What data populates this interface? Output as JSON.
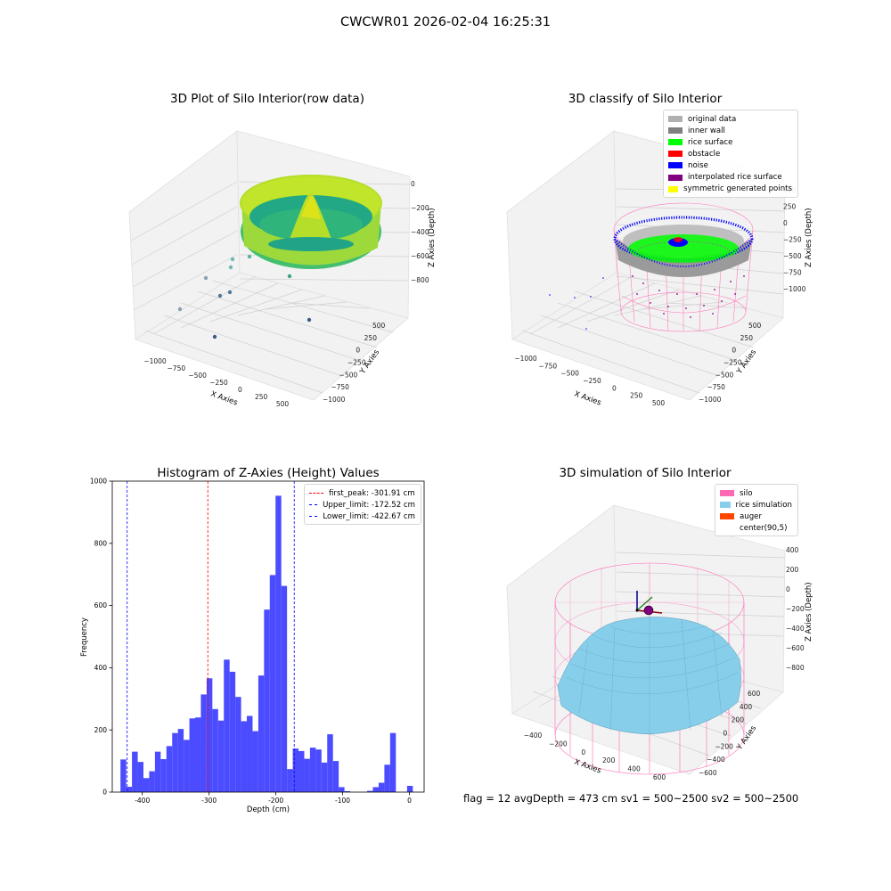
{
  "suptitle": "CWCWR01 2026-02-04 16:25:31",
  "panels": {
    "raw": {
      "title": "3D Plot of Silo Interior(row data)",
      "xlabel": "X Axies",
      "ylabel": "Y Axies",
      "zlabel": "Z Axies (Depth)",
      "xticks": [
        "−1000",
        "−750",
        "−500",
        "−250",
        "0",
        "250",
        "500"
      ],
      "yticks": [
        "500",
        "250",
        "0",
        "−250",
        "−500",
        "−750",
        "−1000"
      ],
      "zticks": [
        "0",
        "−200",
        "−400",
        "−600",
        "−800"
      ]
    },
    "classify": {
      "title": "3D classify of Silo Interior",
      "xlabel": "X Axies",
      "ylabel": "Y Axies",
      "zlabel": "Z Axies (Depth)",
      "xticks": [
        "−1000",
        "−750",
        "−500",
        "−250",
        "0",
        "250",
        "500"
      ],
      "yticks": [
        "500",
        "250",
        "0",
        "−250",
        "−500",
        "−750",
        "−1000"
      ],
      "zticks": [
        "500",
        "250",
        "0",
        "−250",
        "−500",
        "−750",
        "−1000"
      ],
      "legend": [
        {
          "label": "original data",
          "color": "#b0b0b0"
        },
        {
          "label": "inner wall",
          "color": "#808080"
        },
        {
          "label": "rice surface",
          "color": "#00ff00"
        },
        {
          "label": "obstacle",
          "color": "#ff0000"
        },
        {
          "label": "noise",
          "color": "#0000ff"
        },
        {
          "label": "interpolated rice surface",
          "color": "#800080"
        },
        {
          "label": "symmetric generated points",
          "color": "#ffff00"
        }
      ]
    },
    "simulation": {
      "title": "3D simulation of Silo Interior",
      "xlabel": "X Axies",
      "ylabel": "Y Axies",
      "zlabel": "Z Axies (Depth)",
      "xticks": [
        "−400",
        "−200",
        "0",
        "200",
        "400",
        "600"
      ],
      "yticks": [
        "600",
        "400",
        "200",
        "0",
        "−200",
        "−400",
        "−600"
      ],
      "zticks": [
        "400",
        "200",
        "0",
        "−200",
        "−400",
        "−600",
        "−800"
      ],
      "legend": [
        {
          "label": "silo",
          "color": "#ff69b4"
        },
        {
          "label": "rice simulation",
          "color": "#87ceeb"
        },
        {
          "label": "auger",
          "color": "#ff4500"
        },
        {
          "label": "center(90,5)",
          "color": "#ffffff"
        }
      ]
    }
  },
  "chart_data": {
    "type": "bar",
    "title": "Histogram of Z-Axies (Height) Values",
    "xlabel": "Depth (cm)",
    "ylabel": "Frequency",
    "xlim": [
      -445,
      22
    ],
    "ylim": [
      0,
      1000
    ],
    "xticks": [
      -400,
      -300,
      -200,
      -100,
      0
    ],
    "yticks": [
      0,
      200,
      400,
      600,
      800,
      1000
    ],
    "bar_color": "#4b4bff",
    "bins": [
      {
        "x0": -432.7,
        "x1": -424.1,
        "count": 105
      },
      {
        "x0": -424.1,
        "x1": -415.5,
        "count": 17
      },
      {
        "x0": -415.5,
        "x1": -406.9,
        "count": 130
      },
      {
        "x0": -406.9,
        "x1": -398.3,
        "count": 97
      },
      {
        "x0": -398.3,
        "x1": -389.7,
        "count": 45
      },
      {
        "x0": -389.7,
        "x1": -381.1,
        "count": 67
      },
      {
        "x0": -381.1,
        "x1": -372.5,
        "count": 130
      },
      {
        "x0": -372.5,
        "x1": -363.9,
        "count": 106
      },
      {
        "x0": -363.9,
        "x1": -355.3,
        "count": 148
      },
      {
        "x0": -355.3,
        "x1": -346.7,
        "count": 190
      },
      {
        "x0": -346.7,
        "x1": -338.1,
        "count": 203
      },
      {
        "x0": -338.1,
        "x1": -329.5,
        "count": 168
      },
      {
        "x0": -329.5,
        "x1": -320.9,
        "count": 237
      },
      {
        "x0": -320.9,
        "x1": -312.3,
        "count": 240
      },
      {
        "x0": -312.3,
        "x1": -303.7,
        "count": 314
      },
      {
        "x0": -303.7,
        "x1": -295.1,
        "count": 366
      },
      {
        "x0": -295.1,
        "x1": -286.5,
        "count": 267
      },
      {
        "x0": -286.5,
        "x1": -277.9,
        "count": 230
      },
      {
        "x0": -277.9,
        "x1": -269.3,
        "count": 426
      },
      {
        "x0": -269.3,
        "x1": -260.7,
        "count": 387
      },
      {
        "x0": -260.7,
        "x1": -252.1,
        "count": 306
      },
      {
        "x0": -252.1,
        "x1": -243.5,
        "count": 228
      },
      {
        "x0": -243.5,
        "x1": -234.9,
        "count": 245
      },
      {
        "x0": -234.9,
        "x1": -226.3,
        "count": 196
      },
      {
        "x0": -226.3,
        "x1": -217.7,
        "count": 375
      },
      {
        "x0": -217.7,
        "x1": -209.1,
        "count": 587
      },
      {
        "x0": -209.1,
        "x1": -200.5,
        "count": 698
      },
      {
        "x0": -200.5,
        "x1": -191.9,
        "count": 953
      },
      {
        "x0": -191.9,
        "x1": -183.3,
        "count": 663
      },
      {
        "x0": -183.3,
        "x1": -174.7,
        "count": 74
      },
      {
        "x0": -174.7,
        "x1": -166.1,
        "count": 140
      },
      {
        "x0": -166.1,
        "x1": -157.5,
        "count": 132
      },
      {
        "x0": -157.5,
        "x1": -148.9,
        "count": 107
      },
      {
        "x0": -148.9,
        "x1": -140.3,
        "count": 143
      },
      {
        "x0": -140.3,
        "x1": -131.7,
        "count": 137
      },
      {
        "x0": -131.7,
        "x1": -123.1,
        "count": 95
      },
      {
        "x0": -123.1,
        "x1": -114.5,
        "count": 186
      },
      {
        "x0": -114.5,
        "x1": -105.9,
        "count": 100
      },
      {
        "x0": -105.9,
        "x1": -97.3,
        "count": 16
      },
      {
        "x0": -97.3,
        "x1": -88.7,
        "count": 3
      },
      {
        "x0": -63.3,
        "x1": -54.7,
        "count": 4
      },
      {
        "x0": -54.7,
        "x1": -46.1,
        "count": 16
      },
      {
        "x0": -46.1,
        "x1": -37.5,
        "count": 30
      },
      {
        "x0": -37.5,
        "x1": -28.9,
        "count": 88
      },
      {
        "x0": -28.9,
        "x1": -20.3,
        "count": 190
      },
      {
        "x0": -3.5,
        "x1": 5.1,
        "count": 20
      }
    ],
    "vlines": [
      {
        "label": "first_peak: -301.91 cm",
        "x": -301.91,
        "color": "#ff0000"
      },
      {
        "label": "Upper_limit: -172.52 cm",
        "x": -172.52,
        "color": "#0000ff"
      },
      {
        "label": "Lower_limit: -422.67 cm",
        "x": -422.67,
        "color": "#0000ff"
      }
    ]
  },
  "status": "flag = 12   avgDepth = 473 cm  sv1 = 500~2500  sv2 = 500~2500"
}
